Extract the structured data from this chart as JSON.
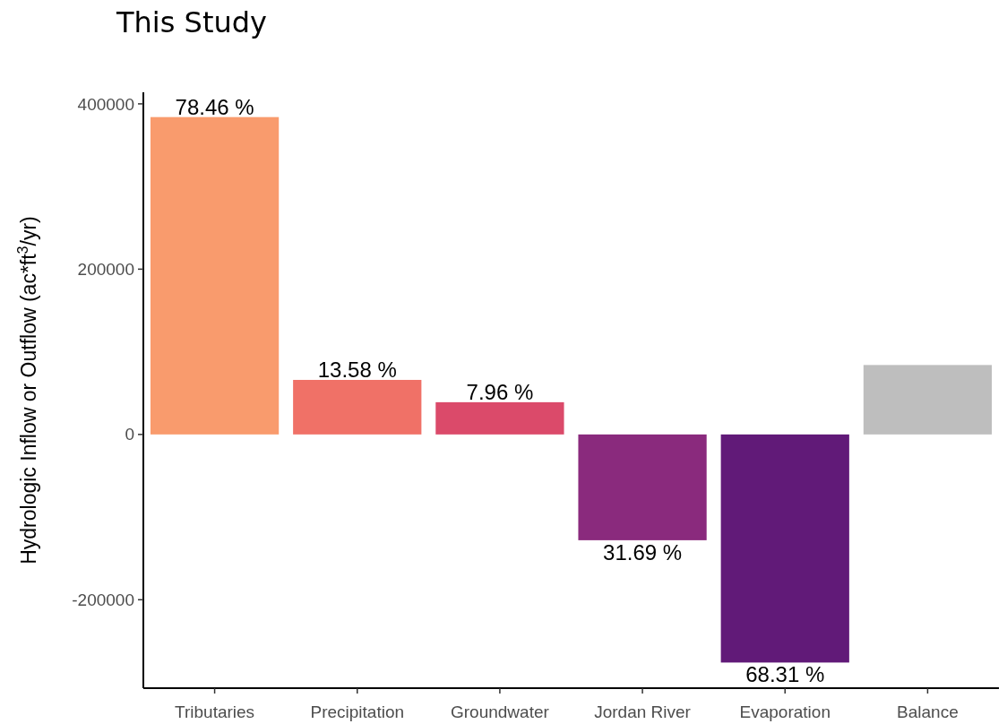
{
  "chart_data": {
    "type": "bar",
    "title": "This Study",
    "ylabel": "Hydrologic Inflow or Outflow (ac*ft$^{3}$/yr)",
    "categories": [
      "Tributaries",
      "Precipitation",
      "Groundwater",
      "Jordan River",
      "Evaporation",
      "Balance"
    ],
    "values": [
      384000,
      66000,
      39000,
      -128000,
      -276000,
      84000
    ],
    "colors": [
      "#f99b6d",
      "#f07167",
      "#db4a6a",
      "#8a2a7d",
      "#611a78",
      "#bebebe"
    ],
    "annotations": [
      {
        "text": "78.46 %",
        "x": "Tributaries",
        "y": 384000
      },
      {
        "text": "13.58 %",
        "x": "Precipitation",
        "y": 66000
      },
      {
        "text": "7.96 %",
        "x": "Groundwater",
        "y": 39000
      },
      {
        "text": "31.69 %",
        "x": "Jordan River",
        "y": -128000
      },
      {
        "text": "68.31 %",
        "x": "Evaporation",
        "y": -276000
      }
    ],
    "ylim": [
      -307000,
      414000
    ],
    "yticks": [
      -200000,
      0,
      200000,
      400000
    ]
  }
}
